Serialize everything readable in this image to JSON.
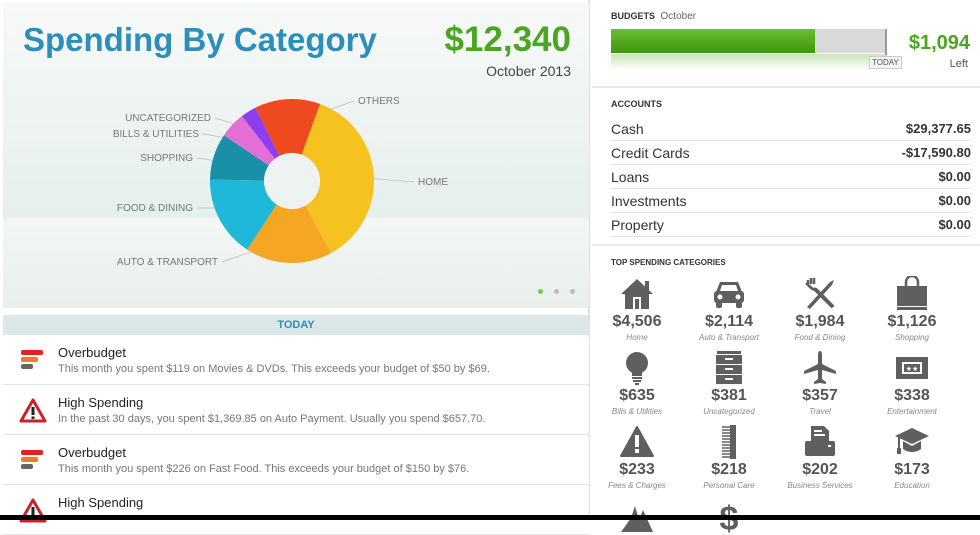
{
  "spending": {
    "title": "Spending By Category",
    "total": "$12,340",
    "period": "October 2013"
  },
  "chart_data": {
    "type": "pie",
    "title": "Spending By Category",
    "categories": [
      "HOME",
      "AUTO & TRANSPORT",
      "FOOD & DINING",
      "SHOPPING",
      "BILLS & UTILITIES",
      "UNCATEGORIZED",
      "OTHERS"
    ],
    "values": [
      4506,
      2114,
      1984,
      1126,
      635,
      381,
      1594
    ],
    "colors": [
      "#f5c21f",
      "#f5a623",
      "#1fb8d8",
      "#1a8fa8",
      "#e26fd5",
      "#8d3ff0",
      "#ef4a1f"
    ]
  },
  "pager": {
    "pages": 3,
    "current": 1
  },
  "today_label": "TODAY",
  "alerts": [
    {
      "type": "overbudget",
      "title": "Overbudget",
      "desc": "This month you spent $119 on Movies & DVDs. This exceeds your budget of $50 by $69."
    },
    {
      "type": "high",
      "title": "High Spending",
      "desc": "In the past 30 days, you spent $1,369.85 on Auto Payment.  Usually you spend $657.70."
    },
    {
      "type": "overbudget",
      "title": "Overbudget",
      "desc": "This month you spent $226 on Fast Food. This exceeds your budget of $150 by $76."
    },
    {
      "type": "high",
      "title": "High Spending",
      "desc": ""
    }
  ],
  "budgets": {
    "header": "BUDGETS",
    "month": "October",
    "progress_percent": 74,
    "today_tag": "TODAY",
    "left_amount": "$1,094",
    "left_label": "Left"
  },
  "accounts": {
    "header": "ACCOUNTS",
    "rows": [
      {
        "name": "Cash",
        "value": "$29,377.65"
      },
      {
        "name": "Credit Cards",
        "value": "-$17,590.80"
      },
      {
        "name": "Loans",
        "value": "$0.00"
      },
      {
        "name": "Investments",
        "value": "$0.00"
      },
      {
        "name": "Property",
        "value": "$0.00"
      }
    ]
  },
  "top_categories": {
    "header": "TOP SPENDING CATEGORIES",
    "items": [
      {
        "icon": "home-icon",
        "amount": "$4,506",
        "label": "Home"
      },
      {
        "icon": "car-icon",
        "amount": "$2,114",
        "label": "Auto & Transport"
      },
      {
        "icon": "fork-knife-icon",
        "amount": "$1,984",
        "label": "Food & Dining"
      },
      {
        "icon": "shopping-bag-icon",
        "amount": "$1,126",
        "label": "Shopping"
      },
      {
        "icon": "lightbulb-icon",
        "amount": "$635",
        "label": "Bills & Utilities"
      },
      {
        "icon": "drawers-icon",
        "amount": "$381",
        "label": "Uncategorized"
      },
      {
        "icon": "airplane-icon",
        "amount": "$357",
        "label": "Travel"
      },
      {
        "icon": "ticket-icon",
        "amount": "$338",
        "label": "Entertainment"
      },
      {
        "icon": "warning-icon",
        "amount": "$233",
        "label": "Fees & Charges"
      },
      {
        "icon": "comb-icon",
        "amount": "$218",
        "label": "Personal Care"
      },
      {
        "icon": "printer-icon",
        "amount": "$202",
        "label": "Business Services"
      },
      {
        "icon": "graduation-cap-icon",
        "amount": "$173",
        "label": "Education"
      }
    ]
  }
}
